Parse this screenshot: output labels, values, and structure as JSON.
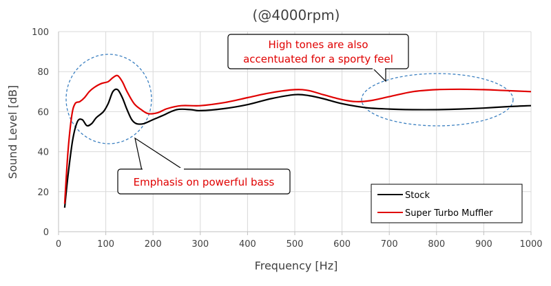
{
  "chart_data": {
    "type": "line",
    "title": "(@4000rpm)",
    "xlabel": "Frequency [Hz]",
    "ylabel": "Sound Level [dB]",
    "xlim": [
      0,
      1000
    ],
    "ylim": [
      0,
      100
    ],
    "xticks": [
      0,
      100,
      200,
      300,
      400,
      500,
      600,
      700,
      800,
      900,
      1000
    ],
    "yticks": [
      0,
      20,
      40,
      60,
      80,
      100
    ],
    "grid": true,
    "legend_position": "bottom-right",
    "series": [
      {
        "name": "Stock",
        "color": "#000000",
        "points": [
          [
            13,
            12
          ],
          [
            20,
            28
          ],
          [
            30,
            46
          ],
          [
            40,
            55
          ],
          [
            50,
            56
          ],
          [
            60,
            53
          ],
          [
            70,
            54
          ],
          [
            80,
            57
          ],
          [
            95,
            60
          ],
          [
            105,
            64
          ],
          [
            115,
            70
          ],
          [
            125,
            71
          ],
          [
            135,
            67
          ],
          [
            145,
            61
          ],
          [
            155,
            56
          ],
          [
            165,
            54
          ],
          [
            180,
            54
          ],
          [
            200,
            56
          ],
          [
            220,
            58
          ],
          [
            250,
            61
          ],
          [
            280,
            61
          ],
          [
            300,
            60.5
          ],
          [
            350,
            61.5
          ],
          [
            400,
            63.5
          ],
          [
            450,
            66.5
          ],
          [
            500,
            68.5
          ],
          [
            530,
            68
          ],
          [
            560,
            66.5
          ],
          [
            600,
            64
          ],
          [
            650,
            62
          ],
          [
            700,
            61.3
          ],
          [
            750,
            61
          ],
          [
            800,
            61
          ],
          [
            850,
            61.3
          ],
          [
            900,
            61.8
          ],
          [
            950,
            62.5
          ],
          [
            1000,
            63
          ]
        ]
      },
      {
        "name": "Super Turbo Muffler",
        "color": "#e00000",
        "points": [
          [
            13,
            14
          ],
          [
            20,
            40
          ],
          [
            28,
            58
          ],
          [
            35,
            64
          ],
          [
            45,
            65
          ],
          [
            55,
            67
          ],
          [
            65,
            70
          ],
          [
            75,
            72
          ],
          [
            90,
            74
          ],
          [
            105,
            75
          ],
          [
            115,
            77
          ],
          [
            125,
            78
          ],
          [
            135,
            75
          ],
          [
            145,
            70
          ],
          [
            160,
            64
          ],
          [
            175,
            61
          ],
          [
            190,
            59
          ],
          [
            210,
            59.5
          ],
          [
            230,
            61.5
          ],
          [
            260,
            63
          ],
          [
            300,
            63
          ],
          [
            350,
            64.5
          ],
          [
            400,
            67
          ],
          [
            450,
            69.5
          ],
          [
            500,
            71
          ],
          [
            530,
            70.5
          ],
          [
            560,
            68.5
          ],
          [
            600,
            66
          ],
          [
            630,
            65
          ],
          [
            660,
            65.5
          ],
          [
            700,
            67.5
          ],
          [
            750,
            70
          ],
          [
            800,
            71
          ],
          [
            850,
            71.2
          ],
          [
            900,
            71
          ],
          [
            950,
            70.5
          ],
          [
            1000,
            70
          ]
        ]
      }
    ],
    "annotations": [
      {
        "text": [
          "High tones are also",
          "accentuated for a sporty feel"
        ],
        "color": "#e00000",
        "target": "high-frequency range"
      },
      {
        "text": [
          "Emphasis on powerful bass"
        ],
        "color": "#e00000",
        "target": "low-frequency range"
      }
    ]
  },
  "colors": {
    "annotation_text": "#e00000",
    "ellipse_dash": "#3a7fc0"
  }
}
